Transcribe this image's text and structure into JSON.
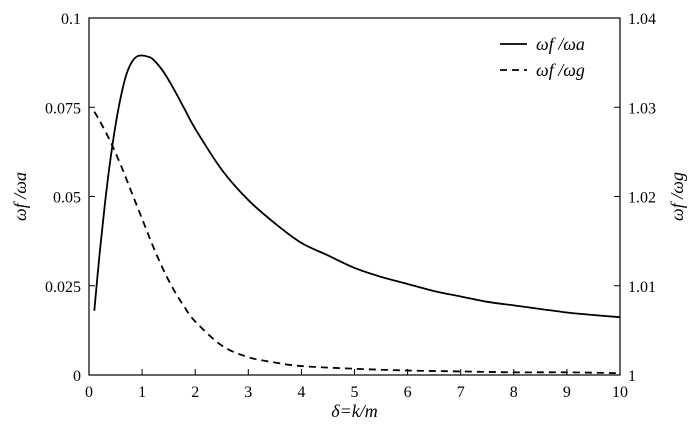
{
  "chart_data": {
    "type": "line",
    "xlabel": "δ=k/m",
    "ylabel_left": "ωf /ωa",
    "ylabel_right": "ωf /ωg",
    "xlim": [
      0,
      10
    ],
    "ylim_left": [
      0,
      0.1
    ],
    "ylim_right": [
      1,
      1.04
    ],
    "xticks": [
      0,
      1,
      2,
      3,
      4,
      5,
      6,
      7,
      8,
      9,
      10
    ],
    "yticks_left": [
      0,
      0.025,
      0.05,
      0.075,
      0.1
    ],
    "yticks_right": [
      1,
      1.01,
      1.02,
      1.03,
      1.04
    ],
    "xtick_labels": [
      "0",
      "1",
      "2",
      "3",
      "4",
      "5",
      "6",
      "7",
      "8",
      "9",
      "10"
    ],
    "ytick_labels_left": [
      "0",
      "0.025",
      "0.05",
      "0.075",
      "0.1"
    ],
    "ytick_labels_right": [
      "1",
      "1.01",
      "1.02",
      "1.03",
      "1.04"
    ],
    "grid": false,
    "legend": "top-right",
    "series": [
      {
        "name": "ωf /ωa",
        "axis": "left",
        "style": "solid",
        "x": [
          0.1,
          0.2,
          0.3,
          0.4,
          0.5,
          0.6,
          0.7,
          0.8,
          0.9,
          1.0,
          1.1,
          1.2,
          1.4,
          1.6,
          1.8,
          2.0,
          2.5,
          3.0,
          3.5,
          4.0,
          4.5,
          5.0,
          5.5,
          6.0,
          6.5,
          7.0,
          7.5,
          8.0,
          8.5,
          9.0,
          9.5,
          10.0
        ],
        "y": [
          0.018,
          0.034,
          0.048,
          0.06,
          0.07,
          0.078,
          0.084,
          0.0875,
          0.0892,
          0.0895,
          0.0892,
          0.0885,
          0.085,
          0.08,
          0.0745,
          0.069,
          0.0575,
          0.049,
          0.0425,
          0.037,
          0.0335,
          0.03,
          0.0275,
          0.0255,
          0.0235,
          0.022,
          0.0205,
          0.0195,
          0.0185,
          0.0175,
          0.0168,
          0.0162
        ]
      },
      {
        "name": "ωf /ωg",
        "axis": "right",
        "style": "dashed",
        "x": [
          0.1,
          0.2,
          0.4,
          0.6,
          0.8,
          1.0,
          1.2,
          1.4,
          1.6,
          1.8,
          2.0,
          2.5,
          3.0,
          3.5,
          4.0,
          5.0,
          6.0,
          7.0,
          8.0,
          9.0,
          10.0
        ],
        "y": [
          1.0295,
          1.0285,
          1.0262,
          1.0235,
          1.0205,
          1.0175,
          1.0145,
          1.0118,
          1.0095,
          1.0076,
          1.006,
          1.0033,
          1.002,
          1.0014,
          1.001,
          1.0007,
          1.0005,
          1.0004,
          1.0003,
          1.0003,
          1.0002
        ]
      }
    ]
  }
}
